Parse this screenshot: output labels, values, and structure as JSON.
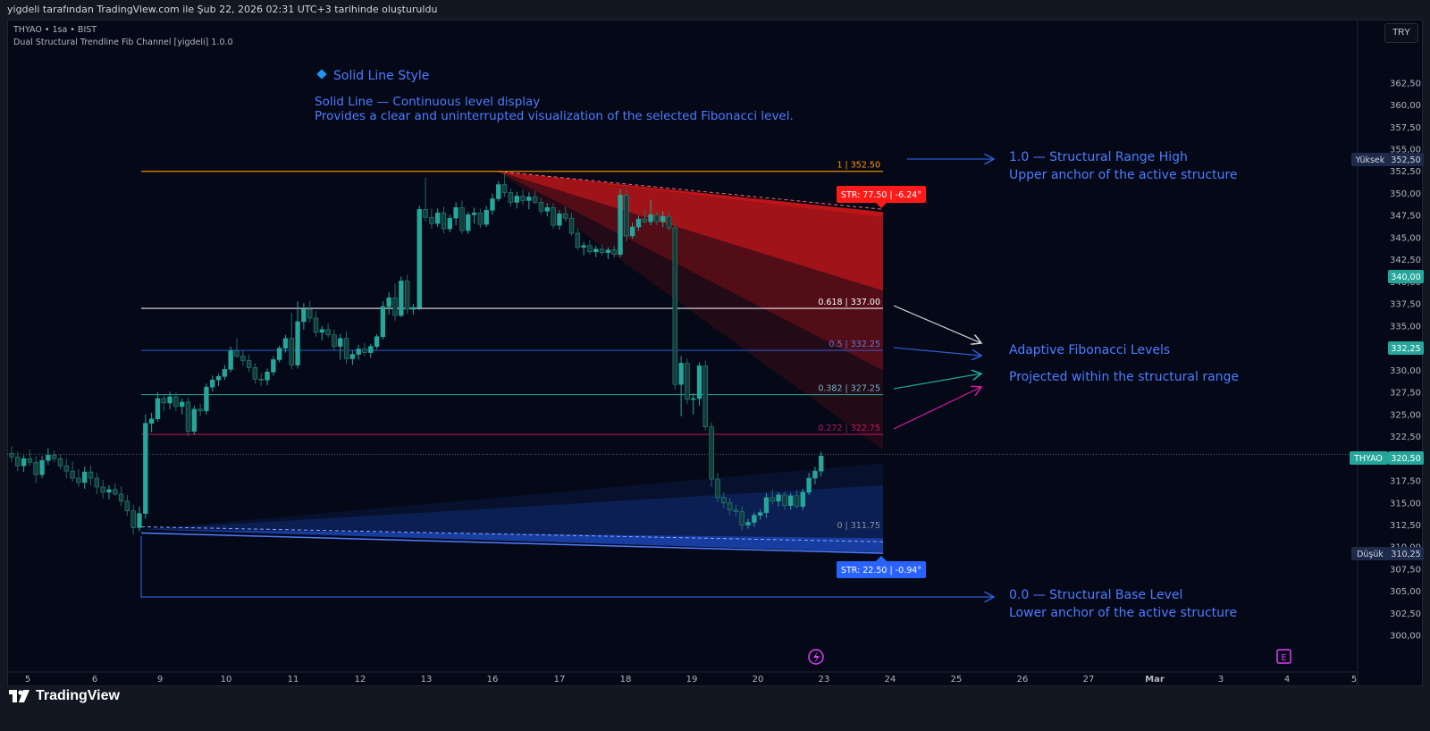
{
  "top_bar": {
    "caption": "yigdeli tarafından TradingView.com ile Şub 22, 2026 02:31 UTC+3 tarihinde oluşturuldu"
  },
  "header": {
    "symbol_line": "THYAO • 1sa • BIST",
    "indicator_line": "Dual Structural Trendline Fib Channel [yigdeli] 1.0.0"
  },
  "currency_button": "TRY",
  "footer": {
    "brand": "TradingView"
  },
  "colors": {
    "background": "#040817",
    "bull": "#26a69a",
    "bear": "#ef5350",
    "bearish_wick": "#26a69a",
    "red_fan": "#ff1a1a",
    "blue_fan": "#2962ff",
    "level_1": "#ff9800",
    "level_0618": "#ffffff",
    "level_05": "#2f5bd0",
    "level_0382": "#26a69a",
    "level_0272": "#c2185b",
    "level_0": "#2962ff",
    "annotation_text": "#4f7dff"
  },
  "annotations": {
    "style_title": "Solid Line Style",
    "style_line1": "Solid Line — Continuous level display",
    "style_line2": "Provides a clear and uninterrupted visualization of the selected Fibonacci level.",
    "high_title": "1.0 — Structural Range High",
    "high_sub": "Upper anchor of the active structure",
    "fib_title": "Adaptive Fibonacci Levels",
    "fib_sub": "Projected within the structural range",
    "base_title": "0.0 — Structural Base Level",
    "base_sub": "Lower anchor of the active structure"
  },
  "str_badges": {
    "upper": "STR: 77.50 | -6.24°",
    "lower": "STR: 22.50 | -0.94°"
  },
  "price_tags": {
    "high": {
      "label": "Yüksek",
      "value": "352,50"
    },
    "current": {
      "label": "THYAO",
      "value": "320,50"
    },
    "low": {
      "label": "Düşük",
      "value": "310,25"
    },
    "tag_340": "340,00",
    "tag_332": "332,25"
  },
  "event_icons": [
    "lightning-icon",
    "earnings-icon"
  ],
  "chart_data": {
    "type": "candlestick",
    "symbol": "THYAO",
    "timeframe": "1sa",
    "exchange": "BIST",
    "currency": "TRY",
    "ylim": [
      298.5,
      364.5
    ],
    "y_ticks": [
      "300,00",
      "302,50",
      "305,00",
      "307,50",
      "310,00",
      "312,50",
      "315,00",
      "317,50",
      "320,00",
      "322,50",
      "325,00",
      "327,50",
      "330,00",
      "332,50",
      "335,00",
      "337,50",
      "340,00",
      "342,50",
      "345,00",
      "347,50",
      "350,00",
      "352,50",
      "355,00",
      "357,50",
      "360,00",
      "362,50"
    ],
    "x_ticks": [
      "5",
      "6",
      "9",
      "10",
      "11",
      "12",
      "13",
      "16",
      "17",
      "18",
      "19",
      "20",
      "23",
      "24",
      "25",
      "26",
      "27",
      "Mar",
      "3",
      "4",
      "5"
    ],
    "current_price": 320.5,
    "fib_levels": [
      {
        "ratio": "1",
        "price": 352.5,
        "label": "1 | 352.50"
      },
      {
        "ratio": "0.618",
        "price": 337.0,
        "label": "0.618 | 337.00"
      },
      {
        "ratio": "0.5",
        "price": 332.25,
        "label": "0.5 | 332.25"
      },
      {
        "ratio": "0.382",
        "price": 327.25,
        "label": "0.382 | 327.25"
      },
      {
        "ratio": "0.272",
        "price": 322.75,
        "label": "0.272 | 322.75"
      },
      {
        "ratio": "0",
        "price": 311.75,
        "label": "0 | 311.75"
      }
    ],
    "candles_ohlc": [
      [
        320.6,
        321.4,
        319.6,
        320.2
      ],
      [
        320.2,
        320.8,
        318.6,
        319.2
      ],
      [
        319.2,
        320.4,
        318.5,
        320.0
      ],
      [
        320.0,
        321.0,
        319.2,
        319.6
      ],
      [
        319.6,
        320.3,
        317.2,
        318.2
      ],
      [
        318.2,
        320.3,
        317.8,
        319.8
      ],
      [
        319.8,
        321.2,
        319.3,
        320.4
      ],
      [
        320.4,
        320.9,
        319.6,
        320.0
      ],
      [
        320.0,
        320.5,
        318.8,
        319.2
      ],
      [
        319.2,
        320.0,
        317.8,
        318.6
      ],
      [
        318.6,
        319.7,
        317.4,
        317.8
      ],
      [
        317.8,
        318.8,
        316.8,
        317.3
      ],
      [
        317.3,
        319.1,
        316.6,
        318.5
      ],
      [
        318.5,
        319.2,
        317.0,
        317.8
      ],
      [
        317.8,
        318.4,
        316.0,
        316.8
      ],
      [
        316.8,
        317.6,
        315.5,
        316.2
      ],
      [
        316.2,
        317.0,
        315.4,
        316.5
      ],
      [
        316.5,
        317.2,
        315.8,
        316.0
      ],
      [
        316.0,
        316.9,
        314.6,
        315.2
      ],
      [
        315.2,
        315.9,
        313.5,
        314.1
      ],
      [
        314.1,
        314.8,
        311.4,
        312.2
      ],
      [
        312.2,
        314.6,
        311.8,
        313.8
      ],
      [
        313.8,
        325.0,
        313.2,
        324.0
      ],
      [
        324.0,
        325.2,
        323.0,
        324.5
      ],
      [
        324.5,
        327.5,
        324.2,
        326.8
      ],
      [
        326.8,
        327.2,
        325.4,
        326.3
      ],
      [
        326.3,
        327.6,
        325.6,
        327.0
      ],
      [
        327.0,
        327.5,
        325.4,
        325.9
      ],
      [
        325.9,
        326.8,
        325.0,
        326.4
      ],
      [
        326.4,
        326.9,
        322.5,
        323.1
      ],
      [
        323.1,
        326.0,
        322.7,
        325.6
      ],
      [
        325.6,
        326.2,
        324.8,
        325.4
      ],
      [
        325.4,
        328.5,
        325.0,
        328.1
      ],
      [
        328.1,
        329.4,
        327.6,
        328.9
      ],
      [
        328.9,
        329.6,
        328.2,
        329.3
      ],
      [
        329.3,
        330.6,
        328.9,
        330.1
      ],
      [
        330.1,
        332.7,
        329.8,
        332.2
      ],
      [
        332.2,
        333.6,
        331.4,
        331.6
      ],
      [
        331.6,
        332.3,
        330.5,
        331.1
      ],
      [
        331.1,
        331.8,
        329.8,
        330.3
      ],
      [
        330.3,
        330.8,
        328.5,
        329.0
      ],
      [
        329.0,
        329.7,
        328.2,
        328.9
      ],
      [
        328.9,
        330.2,
        328.3,
        329.8
      ],
      [
        329.8,
        331.6,
        329.4,
        331.2
      ],
      [
        331.2,
        332.8,
        330.9,
        332.5
      ],
      [
        332.5,
        334.0,
        332.0,
        333.6
      ],
      [
        333.6,
        336.5,
        330.1,
        330.6
      ],
      [
        330.6,
        337.8,
        330.2,
        335.5
      ],
      [
        335.5,
        337.6,
        334.6,
        336.9
      ],
      [
        336.9,
        337.9,
        335.4,
        335.9
      ],
      [
        335.9,
        336.7,
        333.8,
        334.3
      ],
      [
        334.3,
        335.0,
        333.4,
        334.6
      ],
      [
        334.6,
        335.3,
        333.7,
        334.0
      ],
      [
        334.0,
        334.6,
        332.2,
        332.7
      ],
      [
        332.7,
        334.1,
        331.2,
        333.6
      ],
      [
        333.6,
        334.4,
        330.7,
        331.3
      ],
      [
        331.3,
        332.2,
        330.6,
        331.8
      ],
      [
        331.8,
        332.9,
        331.2,
        332.4
      ],
      [
        332.4,
        333.1,
        331.6,
        332.0
      ],
      [
        332.0,
        333.0,
        331.4,
        332.7
      ],
      [
        332.7,
        334.1,
        332.4,
        333.8
      ],
      [
        333.8,
        337.8,
        333.5,
        337.2
      ],
      [
        337.2,
        338.8,
        336.3,
        338.2
      ],
      [
        338.2,
        339.8,
        335.6,
        336.2
      ],
      [
        336.2,
        340.6,
        336.0,
        340.1
      ],
      [
        340.1,
        340.8,
        336.4,
        336.9
      ],
      [
        336.9,
        337.5,
        336.3,
        337.1
      ],
      [
        337.1,
        348.6,
        336.8,
        348.2
      ],
      [
        348.2,
        351.8,
        346.8,
        347.3
      ],
      [
        347.3,
        348.3,
        346.0,
        346.6
      ],
      [
        346.6,
        348.3,
        346.2,
        347.8
      ],
      [
        347.8,
        348.5,
        345.5,
        346.0
      ],
      [
        346.0,
        347.6,
        345.6,
        347.2
      ],
      [
        347.2,
        349.0,
        346.4,
        348.4
      ],
      [
        348.4,
        349.2,
        345.4,
        345.8
      ],
      [
        345.8,
        347.9,
        345.4,
        347.6
      ],
      [
        347.6,
        348.4,
        346.6,
        347.8
      ],
      [
        347.8,
        348.3,
        346.1,
        346.5
      ],
      [
        346.5,
        348.6,
        346.2,
        348.1
      ],
      [
        348.1,
        350.0,
        347.6,
        349.4
      ],
      [
        349.4,
        351.4,
        349.1,
        351.0
      ],
      [
        351.0,
        352.5,
        349.6,
        350.1
      ],
      [
        350.1,
        350.6,
        348.5,
        349.0
      ],
      [
        349.0,
        350.2,
        348.3,
        349.7
      ],
      [
        349.7,
        350.4,
        348.7,
        349.2
      ],
      [
        349.2,
        350.1,
        348.2,
        349.6
      ],
      [
        349.6,
        350.3,
        348.8,
        349.0
      ],
      [
        349.0,
        349.5,
        347.6,
        348.0
      ],
      [
        348.0,
        348.9,
        347.4,
        348.4
      ],
      [
        348.4,
        348.9,
        346.0,
        346.4
      ],
      [
        346.4,
        348.1,
        345.9,
        347.7
      ],
      [
        347.7,
        348.5,
        346.8,
        347.2
      ],
      [
        347.2,
        347.8,
        345.2,
        345.5
      ],
      [
        345.5,
        346.1,
        343.6,
        343.9
      ],
      [
        343.9,
        344.5,
        343.0,
        344.1
      ],
      [
        344.1,
        344.7,
        343.1,
        343.4
      ],
      [
        343.4,
        344.1,
        342.8,
        343.7
      ],
      [
        343.7,
        344.2,
        343.0,
        343.3
      ],
      [
        343.3,
        343.9,
        342.6,
        343.6
      ],
      [
        343.6,
        344.1,
        342.7,
        343.1
      ],
      [
        343.1,
        350.5,
        342.8,
        349.8
      ],
      [
        349.8,
        350.6,
        344.6,
        345.2
      ],
      [
        345.2,
        346.7,
        344.9,
        346.2
      ],
      [
        346.2,
        347.5,
        345.8,
        347.1
      ],
      [
        347.1,
        348.2,
        346.6,
        346.8
      ],
      [
        346.8,
        349.3,
        346.4,
        347.6
      ],
      [
        347.6,
        348.0,
        346.4,
        346.8
      ],
      [
        346.8,
        348.0,
        346.2,
        347.4
      ],
      [
        347.4,
        347.9,
        345.8,
        346.1
      ],
      [
        346.1,
        346.7,
        327.8,
        328.4
      ],
      [
        328.4,
        331.6,
        324.8,
        330.8
      ],
      [
        330.8,
        331.3,
        326.2,
        326.7
      ],
      [
        326.7,
        327.4,
        325.0,
        326.8
      ],
      [
        326.8,
        330.9,
        326.0,
        330.5
      ],
      [
        330.5,
        331.1,
        323.2,
        323.6
      ],
      [
        323.6,
        324.1,
        316.8,
        317.7
      ],
      [
        317.7,
        318.4,
        315.1,
        315.6
      ],
      [
        315.6,
        316.2,
        314.4,
        315.0
      ],
      [
        315.0,
        315.6,
        313.6,
        314.2
      ],
      [
        314.2,
        314.8,
        313.5,
        314.0
      ],
      [
        314.0,
        314.6,
        311.9,
        312.5
      ],
      [
        312.5,
        313.2,
        312.1,
        312.8
      ],
      [
        312.8,
        313.9,
        312.3,
        313.6
      ],
      [
        313.6,
        314.3,
        313.1,
        313.9
      ],
      [
        313.9,
        316.1,
        313.3,
        315.6
      ],
      [
        315.6,
        316.5,
        314.8,
        315.2
      ],
      [
        315.2,
        316.2,
        314.6,
        315.9
      ],
      [
        315.9,
        316.3,
        314.2,
        314.7
      ],
      [
        314.7,
        316.1,
        314.2,
        315.8
      ],
      [
        315.8,
        316.4,
        314.4,
        314.6
      ],
      [
        314.6,
        316.6,
        314.2,
        316.2
      ],
      [
        316.2,
        318.4,
        315.9,
        317.8
      ],
      [
        317.8,
        319.1,
        317.1,
        318.6
      ],
      [
        318.6,
        320.8,
        318.0,
        320.3
      ]
    ]
  }
}
